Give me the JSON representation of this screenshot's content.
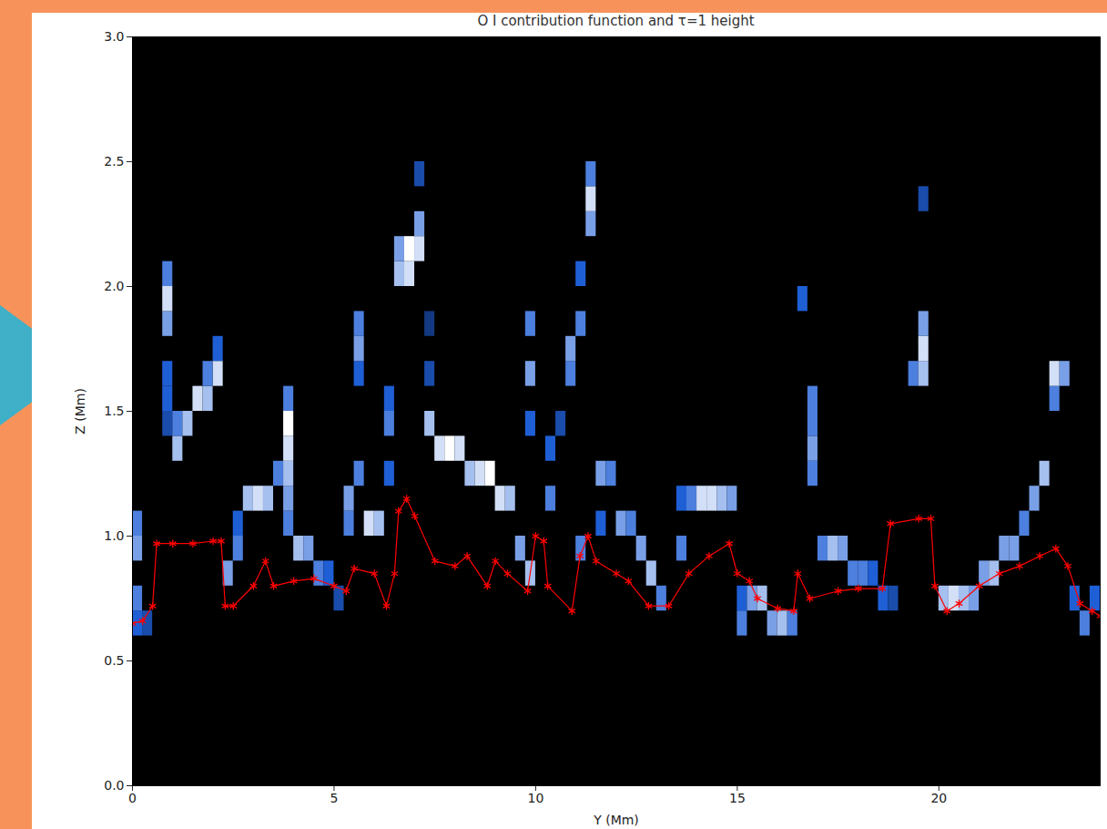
{
  "chart_data": {
    "type": "heatmap",
    "title": "O I contribution function and τ=1 height",
    "xlabel": "Y (Mm)",
    "ylabel": "Z (Mm)",
    "xlim": [
      0,
      24
    ],
    "ylim": [
      0,
      3
    ],
    "xticks": [
      0,
      5,
      10,
      15,
      20
    ],
    "yticks": [
      {
        "value": 0,
        "label": "0.0"
      },
      0.5,
      {
        "value": 1,
        "label": "1.0"
      },
      1.5,
      {
        "value": 2,
        "label": "2.0"
      },
      2.5,
      {
        "value": 3,
        "label": "3.0"
      }
    ],
    "grid": false,
    "heatmap": {
      "cell_width": 0.25,
      "cell_height": 0.1,
      "value_range": [
        0,
        1
      ],
      "colors": [
        "#000000",
        "#1f5fd6",
        "#ffffff"
      ],
      "cells": [
        [
          0,
          0.6,
          0.5
        ],
        [
          0,
          0.7,
          0.6
        ],
        [
          0,
          0.9,
          0.7
        ],
        [
          0,
          1.0,
          0.6
        ],
        [
          0.25,
          0.6,
          0.4
        ],
        [
          0.75,
          1.4,
          0.4
        ],
        [
          0.75,
          1.5,
          0.5
        ],
        [
          0.75,
          1.6,
          0.5
        ],
        [
          0.75,
          1.8,
          0.7
        ],
        [
          0.75,
          1.9,
          0.9
        ],
        [
          0.75,
          2.0,
          0.6
        ],
        [
          1.0,
          1.3,
          0.8
        ],
        [
          1.0,
          1.4,
          0.6
        ],
        [
          1.25,
          1.4,
          0.8
        ],
        [
          1.5,
          1.5,
          0.9
        ],
        [
          1.75,
          1.5,
          0.8
        ],
        [
          2.0,
          1.6,
          0.9
        ],
        [
          1.75,
          1.6,
          0.6
        ],
        [
          2.0,
          1.7,
          0.5
        ],
        [
          2.25,
          0.8,
          0.7
        ],
        [
          2.5,
          0.9,
          0.6
        ],
        [
          2.5,
          1.0,
          0.5
        ],
        [
          2.75,
          1.1,
          0.8
        ],
        [
          3.0,
          1.1,
          0.9
        ],
        [
          3.25,
          1.1,
          0.8
        ],
        [
          3.5,
          1.2,
          0.6
        ],
        [
          3.75,
          1.0,
          0.6
        ],
        [
          3.75,
          1.1,
          0.7
        ],
        [
          3.75,
          1.2,
          0.8
        ],
        [
          3.75,
          1.3,
          0.9
        ],
        [
          3.75,
          1.4,
          1.0
        ],
        [
          3.75,
          1.5,
          0.6
        ],
        [
          4.0,
          0.9,
          0.8
        ],
        [
          4.25,
          0.9,
          0.7
        ],
        [
          4.5,
          0.8,
          0.6
        ],
        [
          4.75,
          0.8,
          0.5
        ],
        [
          5.0,
          0.7,
          0.4
        ],
        [
          5.25,
          1.0,
          0.6
        ],
        [
          5.25,
          1.1,
          0.7
        ],
        [
          5.5,
          1.2,
          0.6
        ],
        [
          5.5,
          1.6,
          0.5
        ],
        [
          5.5,
          1.7,
          0.7
        ],
        [
          5.5,
          1.8,
          0.6
        ],
        [
          5.75,
          1.0,
          0.9
        ],
        [
          6.0,
          1.0,
          0.8
        ],
        [
          6.25,
          1.2,
          0.5
        ],
        [
          6.25,
          1.4,
          0.6
        ],
        [
          6.25,
          1.5,
          0.5
        ],
        [
          6.5,
          2.0,
          0.8
        ],
        [
          6.5,
          2.1,
          0.7
        ],
        [
          6.75,
          2.0,
          0.9
        ],
        [
          6.75,
          2.1,
          1.0
        ],
        [
          7.0,
          2.1,
          0.9
        ],
        [
          7.0,
          2.2,
          0.7
        ],
        [
          7.0,
          2.4,
          0.4
        ],
        [
          7.25,
          1.6,
          0.4
        ],
        [
          7.25,
          1.8,
          0.3
        ],
        [
          7.25,
          1.4,
          0.8
        ],
        [
          7.5,
          1.3,
          0.9
        ],
        [
          7.75,
          1.3,
          1.0
        ],
        [
          8.0,
          1.3,
          0.9
        ],
        [
          8.25,
          1.2,
          0.8
        ],
        [
          8.5,
          1.2,
          0.9
        ],
        [
          8.75,
          1.2,
          1.0
        ],
        [
          9.0,
          1.1,
          0.9
        ],
        [
          9.25,
          1.1,
          0.8
        ],
        [
          9.5,
          0.9,
          0.7
        ],
        [
          9.75,
          0.8,
          0.8
        ],
        [
          9.75,
          1.4,
          0.5
        ],
        [
          9.75,
          1.6,
          0.7
        ],
        [
          9.75,
          1.8,
          0.6
        ],
        [
          10.25,
          1.1,
          0.6
        ],
        [
          10.25,
          1.3,
          0.5
        ],
        [
          10.5,
          1.4,
          0.4
        ],
        [
          10.75,
          1.6,
          0.6
        ],
        [
          10.75,
          1.7,
          0.7
        ],
        [
          11.0,
          1.8,
          0.6
        ],
        [
          11.0,
          2.0,
          0.5
        ],
        [
          11.25,
          2.2,
          0.7
        ],
        [
          11.25,
          2.3,
          0.9
        ],
        [
          11.25,
          2.4,
          0.6
        ],
        [
          11.0,
          0.9,
          0.6
        ],
        [
          11.5,
          1.0,
          0.5
        ],
        [
          11.5,
          1.2,
          0.7
        ],
        [
          11.75,
          1.2,
          0.6
        ],
        [
          12.0,
          1.0,
          0.7
        ],
        [
          12.25,
          1.0,
          0.6
        ],
        [
          12.5,
          0.9,
          0.7
        ],
        [
          12.75,
          0.8,
          0.8
        ],
        [
          13.0,
          0.7,
          0.6
        ],
        [
          13.5,
          0.9,
          0.6
        ],
        [
          13.5,
          1.1,
          0.5
        ],
        [
          13.75,
          1.1,
          0.6
        ],
        [
          14.0,
          1.1,
          0.9
        ],
        [
          14.25,
          1.1,
          0.9
        ],
        [
          14.5,
          1.1,
          0.8
        ],
        [
          14.75,
          1.1,
          0.7
        ],
        [
          15.0,
          0.6,
          0.6
        ],
        [
          15.0,
          0.7,
          0.5
        ],
        [
          15.25,
          0.7,
          0.7
        ],
        [
          15.5,
          0.7,
          0.8
        ],
        [
          15.75,
          0.6,
          0.7
        ],
        [
          16.0,
          0.6,
          0.8
        ],
        [
          16.25,
          0.6,
          0.6
        ],
        [
          16.5,
          1.9,
          0.5
        ],
        [
          16.75,
          1.5,
          0.6
        ],
        [
          16.75,
          1.3,
          0.7
        ],
        [
          16.75,
          1.2,
          0.6
        ],
        [
          16.75,
          1.4,
          0.6
        ],
        [
          17.0,
          0.9,
          0.6
        ],
        [
          17.25,
          0.9,
          0.8
        ],
        [
          17.5,
          0.9,
          0.7
        ],
        [
          17.75,
          0.8,
          0.6
        ],
        [
          18.0,
          0.8,
          0.6
        ],
        [
          18.25,
          0.8,
          0.5
        ],
        [
          18.5,
          0.7,
          0.5
        ],
        [
          18.75,
          0.7,
          0.4
        ],
        [
          19.25,
          1.6,
          0.6
        ],
        [
          19.5,
          1.6,
          0.8
        ],
        [
          19.5,
          1.7,
          0.9
        ],
        [
          19.5,
          1.8,
          0.7
        ],
        [
          19.5,
          2.3,
          0.4
        ],
        [
          20.0,
          0.7,
          0.8
        ],
        [
          20.25,
          0.7,
          0.9
        ],
        [
          20.5,
          0.7,
          0.8
        ],
        [
          20.75,
          0.7,
          0.7
        ],
        [
          21.0,
          0.8,
          0.7
        ],
        [
          21.25,
          0.8,
          0.8
        ],
        [
          21.5,
          0.9,
          0.7
        ],
        [
          21.75,
          0.9,
          0.7
        ],
        [
          22.0,
          1.0,
          0.6
        ],
        [
          22.25,
          1.1,
          0.7
        ],
        [
          22.5,
          1.2,
          0.8
        ],
        [
          22.75,
          1.5,
          0.6
        ],
        [
          22.75,
          1.6,
          0.9
        ],
        [
          23.0,
          1.6,
          0.7
        ],
        [
          23.25,
          0.7,
          0.5
        ],
        [
          23.5,
          0.6,
          0.6
        ],
        [
          23.75,
          0.7,
          0.5
        ]
      ]
    },
    "line": {
      "color": "#ff0000",
      "marker": "asterisk",
      "line_style": "solid",
      "x": [
        0,
        0.25,
        0.5,
        0.6,
        1.0,
        1.5,
        2.0,
        2.2,
        2.3,
        2.5,
        3.0,
        3.3,
        3.5,
        4.0,
        4.5,
        5.0,
        5.3,
        5.5,
        6.0,
        6.3,
        6.5,
        6.6,
        6.8,
        7.0,
        7.5,
        8.0,
        8.3,
        8.8,
        9.0,
        9.3,
        9.8,
        10.0,
        10.2,
        10.3,
        10.9,
        11.1,
        11.3,
        11.5,
        12.0,
        12.3,
        12.8,
        13.3,
        13.8,
        14.3,
        14.8,
        15.0,
        15.3,
        15.5,
        16.0,
        16.4,
        16.5,
        16.8,
        17.5,
        18.0,
        18.6,
        18.8,
        19.5,
        19.8,
        19.9,
        20.2,
        20.5,
        21.0,
        21.5,
        22.0,
        22.5,
        22.9,
        23.2,
        23.5,
        23.8,
        24.0
      ],
      "values": [
        0.65,
        0.66,
        0.72,
        0.97,
        0.97,
        0.97,
        0.98,
        0.98,
        0.72,
        0.72,
        0.8,
        0.9,
        0.8,
        0.82,
        0.83,
        0.8,
        0.78,
        0.87,
        0.85,
        0.72,
        0.85,
        1.1,
        1.15,
        1.08,
        0.9,
        0.88,
        0.92,
        0.8,
        0.9,
        0.85,
        0.78,
        1.0,
        0.98,
        0.8,
        0.7,
        0.92,
        1.0,
        0.9,
        0.85,
        0.82,
        0.72,
        0.72,
        0.85,
        0.92,
        0.97,
        0.85,
        0.82,
        0.75,
        0.71,
        0.7,
        0.85,
        0.75,
        0.78,
        0.79,
        0.79,
        1.05,
        1.07,
        1.07,
        0.8,
        0.7,
        0.73,
        0.8,
        0.85,
        0.88,
        0.92,
        0.95,
        0.88,
        0.73,
        0.7,
        0.68
      ]
    }
  }
}
